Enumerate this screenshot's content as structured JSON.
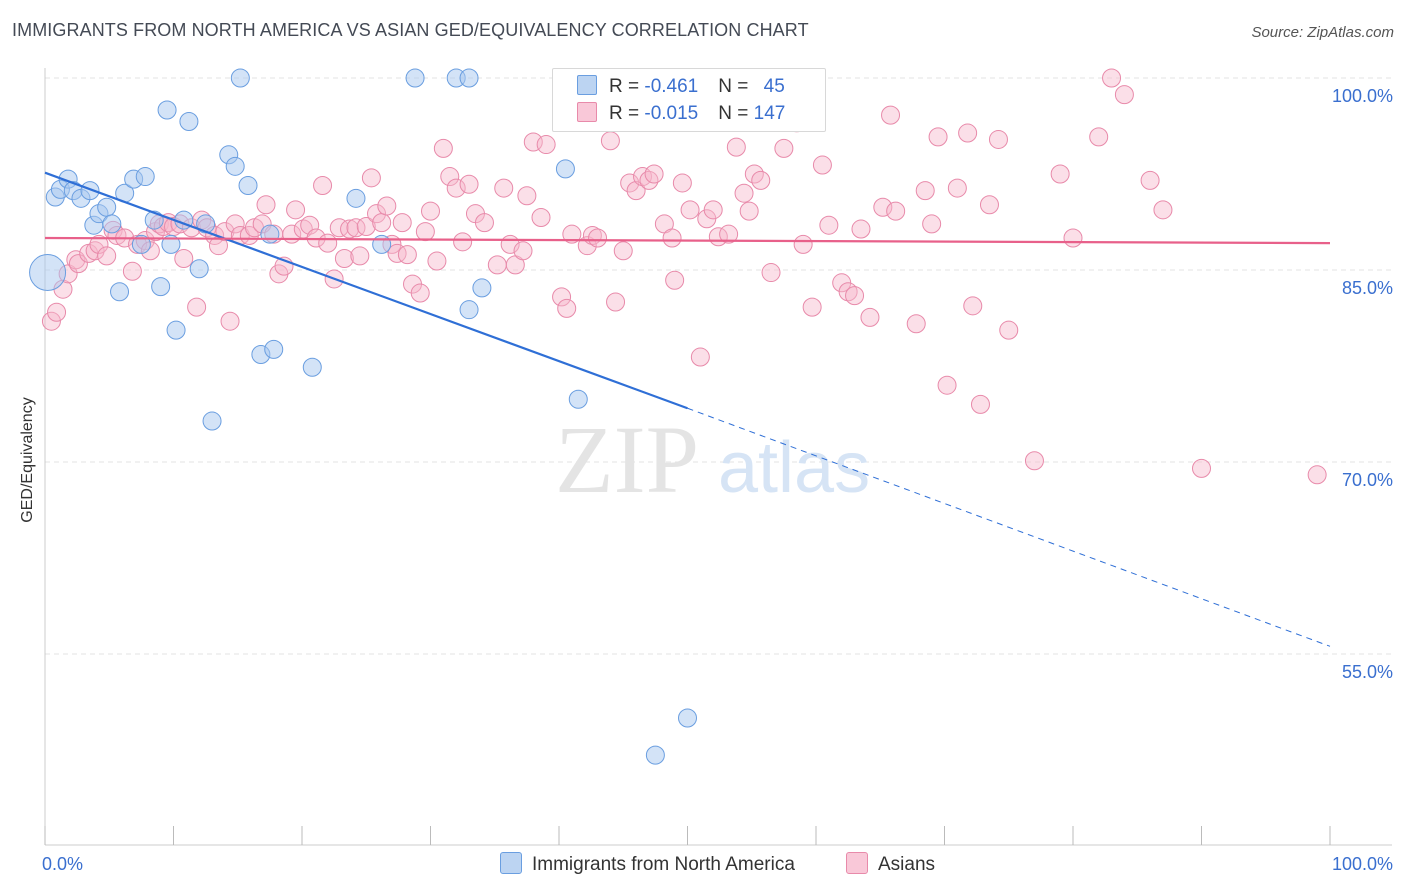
{
  "title": "IMMIGRANTS FROM NORTH AMERICA VS ASIAN GED/EQUIVALENCY CORRELATION CHART",
  "source": "Source: ZipAtlas.com",
  "watermark": {
    "zip": "ZIP",
    "atlas": "atlas"
  },
  "colors": {
    "blue_fill": "#a8c8f0",
    "blue_stroke": "#6a9ee0",
    "blue_line": "#2f6fd6",
    "pink_fill": "#f6b8cc",
    "pink_stroke": "#e88aaa",
    "pink_line": "#e8608a",
    "grid": "#e3e3e3",
    "axis_text": "#3a6fcf"
  },
  "legend": {
    "rows": [
      {
        "r_label": "R = ",
        "r_value": "-0.461",
        "n_label": "N = ",
        "n_value": "45"
      },
      {
        "r_label": "R = ",
        "r_value": "-0.015",
        "n_label": "N = ",
        "n_value": "147"
      }
    ]
  },
  "chart_data": {
    "type": "scatter",
    "title": "IMMIGRANTS FROM NORTH AMERICA VS ASIAN GED/EQUIVALENCY CORRELATION CHART",
    "xlabel": "",
    "ylabel": "GED/Equivalency",
    "xlim": [
      0,
      100
    ],
    "ylim": [
      42,
      102
    ],
    "x_tick_labels": [
      "0.0%",
      "100.0%"
    ],
    "y_ticks": [
      100,
      85,
      70,
      55
    ],
    "y_tick_labels": [
      "100.0%",
      "85.0%",
      "70.0%",
      "55.0%"
    ],
    "grid": true,
    "legend_position": "top-center",
    "series": [
      {
        "name": "Immigrants from North America",
        "color": "#a8c8f0",
        "trend": {
          "x": [
            0,
            50
          ],
          "y": [
            92.6,
            74.2
          ],
          "dashed_to": {
            "x": 100,
            "y": 55.6
          }
        },
        "points": [
          [
            0.2,
            84.8
          ],
          [
            0.8,
            90.7
          ],
          [
            1.2,
            91.3
          ],
          [
            1.8,
            92.1
          ],
          [
            2.2,
            91.2
          ],
          [
            2.8,
            90.6
          ],
          [
            3.5,
            91.2
          ],
          [
            3.8,
            88.5
          ],
          [
            4.2,
            89.4
          ],
          [
            4.8,
            89.9
          ],
          [
            5.2,
            88.6
          ],
          [
            5.8,
            83.3
          ],
          [
            6.2,
            91.0
          ],
          [
            6.9,
            92.1
          ],
          [
            7.5,
            87.0
          ],
          [
            7.8,
            92.3
          ],
          [
            8.5,
            88.9
          ],
          [
            9.0,
            83.7
          ],
          [
            9.5,
            97.5
          ],
          [
            9.8,
            87.0
          ],
          [
            10.2,
            80.3
          ],
          [
            10.8,
            88.9
          ],
          [
            11.2,
            96.6
          ],
          [
            12.0,
            85.1
          ],
          [
            12.5,
            88.6
          ],
          [
            13.0,
            73.2
          ],
          [
            14.3,
            94.0
          ],
          [
            14.8,
            93.1
          ],
          [
            15.2,
            100.0
          ],
          [
            15.8,
            91.6
          ],
          [
            16.8,
            78.4
          ],
          [
            17.5,
            87.8
          ],
          [
            17.8,
            78.8
          ],
          [
            20.8,
            77.4
          ],
          [
            24.2,
            90.6
          ],
          [
            26.2,
            87.0
          ],
          [
            28.8,
            100.0
          ],
          [
            32.0,
            100.0
          ],
          [
            33.0,
            100.0
          ],
          [
            33.0,
            81.9
          ],
          [
            34.0,
            83.6
          ],
          [
            40.5,
            92.9
          ],
          [
            41.5,
            74.9
          ],
          [
            50.0,
            50.0
          ],
          [
            47.5,
            47.1
          ]
        ]
      },
      {
        "name": "Asians",
        "color": "#f6b8cc",
        "trend": {
          "x": [
            0,
            100
          ],
          "y": [
            87.5,
            87.1
          ]
        },
        "points": [
          [
            0.5,
            81.0
          ],
          [
            0.9,
            81.7
          ],
          [
            1.4,
            83.5
          ],
          [
            1.8,
            84.7
          ],
          [
            2.4,
            85.8
          ],
          [
            2.6,
            85.5
          ],
          [
            3.4,
            86.3
          ],
          [
            3.9,
            86.5
          ],
          [
            4.2,
            87.0
          ],
          [
            4.8,
            86.1
          ],
          [
            5.3,
            88.1
          ],
          [
            5.6,
            87.7
          ],
          [
            6.2,
            87.5
          ],
          [
            6.8,
            84.9
          ],
          [
            7.2,
            87.0
          ],
          [
            7.8,
            87.3
          ],
          [
            8.2,
            86.5
          ],
          [
            8.6,
            88.0
          ],
          [
            8.9,
            88.6
          ],
          [
            9.2,
            88.4
          ],
          [
            9.6,
            88.7
          ],
          [
            10.0,
            88.4
          ],
          [
            10.5,
            88.6
          ],
          [
            10.8,
            85.9
          ],
          [
            11.4,
            88.3
          ],
          [
            11.8,
            82.1
          ],
          [
            12.2,
            88.9
          ],
          [
            12.6,
            88.3
          ],
          [
            13.2,
            87.7
          ],
          [
            13.5,
            86.9
          ],
          [
            14.0,
            88.0
          ],
          [
            14.4,
            81.0
          ],
          [
            14.8,
            88.6
          ],
          [
            15.2,
            87.7
          ],
          [
            15.9,
            87.7
          ],
          [
            16.3,
            88.3
          ],
          [
            16.9,
            88.6
          ],
          [
            17.2,
            90.1
          ],
          [
            17.8,
            87.8
          ],
          [
            18.2,
            84.7
          ],
          [
            18.6,
            85.3
          ],
          [
            19.2,
            87.8
          ],
          [
            19.5,
            89.7
          ],
          [
            20.1,
            88.2
          ],
          [
            20.6,
            88.5
          ],
          [
            21.1,
            87.5
          ],
          [
            21.6,
            91.6
          ],
          [
            22.0,
            87.1
          ],
          [
            22.5,
            84.3
          ],
          [
            22.9,
            88.3
          ],
          [
            23.3,
            85.9
          ],
          [
            23.7,
            88.2
          ],
          [
            24.2,
            88.3
          ],
          [
            24.5,
            86.1
          ],
          [
            25.0,
            88.4
          ],
          [
            25.4,
            92.2
          ],
          [
            25.8,
            89.4
          ],
          [
            26.2,
            88.7
          ],
          [
            26.6,
            90.0
          ],
          [
            27.0,
            87.0
          ],
          [
            27.4,
            86.3
          ],
          [
            27.8,
            88.7
          ],
          [
            28.2,
            86.2
          ],
          [
            28.6,
            83.9
          ],
          [
            29.2,
            83.2
          ],
          [
            29.6,
            88.0
          ],
          [
            30.0,
            89.6
          ],
          [
            30.5,
            85.7
          ],
          [
            31.0,
            94.5
          ],
          [
            31.5,
            92.3
          ],
          [
            32.0,
            91.4
          ],
          [
            32.5,
            87.2
          ],
          [
            33.0,
            91.7
          ],
          [
            33.5,
            89.4
          ],
          [
            34.2,
            88.7
          ],
          [
            35.2,
            85.4
          ],
          [
            35.7,
            91.4
          ],
          [
            36.2,
            87.0
          ],
          [
            36.6,
            85.4
          ],
          [
            37.2,
            86.5
          ],
          [
            37.5,
            90.8
          ],
          [
            38.0,
            95.0
          ],
          [
            38.6,
            89.1
          ],
          [
            39.0,
            94.8
          ],
          [
            40.2,
            82.9
          ],
          [
            40.6,
            82.0
          ],
          [
            41.0,
            87.8
          ],
          [
            42.2,
            86.9
          ],
          [
            42.6,
            87.7
          ],
          [
            43.0,
            87.5
          ],
          [
            44.0,
            95.1
          ],
          [
            44.4,
            82.5
          ],
          [
            45.0,
            86.5
          ],
          [
            45.5,
            91.8
          ],
          [
            46.0,
            91.2
          ],
          [
            46.5,
            92.3
          ],
          [
            47.0,
            92.0
          ],
          [
            47.4,
            92.5
          ],
          [
            48.2,
            88.6
          ],
          [
            48.8,
            87.5
          ],
          [
            49.0,
            84.2
          ],
          [
            49.6,
            91.8
          ],
          [
            50.2,
            89.7
          ],
          [
            51.0,
            78.2
          ],
          [
            51.5,
            89.0
          ],
          [
            52.0,
            89.7
          ],
          [
            52.4,
            87.6
          ],
          [
            53.2,
            87.8
          ],
          [
            53.8,
            94.6
          ],
          [
            54.4,
            91.0
          ],
          [
            54.8,
            89.6
          ],
          [
            55.2,
            92.5
          ],
          [
            55.7,
            92.0
          ],
          [
            56.5,
            84.8
          ],
          [
            57.5,
            94.5
          ],
          [
            58.5,
            96.5
          ],
          [
            59.0,
            87.0
          ],
          [
            59.7,
            82.1
          ],
          [
            60.5,
            93.2
          ],
          [
            61.0,
            88.5
          ],
          [
            62.0,
            84.0
          ],
          [
            62.5,
            83.3
          ],
          [
            63.0,
            83.0
          ],
          [
            63.5,
            88.2
          ],
          [
            64.2,
            81.3
          ],
          [
            65.2,
            89.9
          ],
          [
            65.8,
            97.1
          ],
          [
            66.2,
            89.6
          ],
          [
            67.8,
            80.8
          ],
          [
            68.5,
            91.2
          ],
          [
            69.0,
            88.6
          ],
          [
            69.5,
            95.4
          ],
          [
            70.2,
            76.0
          ],
          [
            71.0,
            91.4
          ],
          [
            71.8,
            95.7
          ],
          [
            72.2,
            82.2
          ],
          [
            72.8,
            74.5
          ],
          [
            73.5,
            90.1
          ],
          [
            74.2,
            95.2
          ],
          [
            75.0,
            80.3
          ],
          [
            77.0,
            70.1
          ],
          [
            79.0,
            92.5
          ],
          [
            80.0,
            87.5
          ],
          [
            82.0,
            95.4
          ],
          [
            83.0,
            100.0
          ],
          [
            84.0,
            98.7
          ],
          [
            86.0,
            92.0
          ],
          [
            87.0,
            89.7
          ],
          [
            90.0,
            69.5
          ],
          [
            99.0,
            69.0
          ]
        ]
      }
    ]
  },
  "bottom_legend": [
    "Immigrants from North America",
    "Asians"
  ]
}
